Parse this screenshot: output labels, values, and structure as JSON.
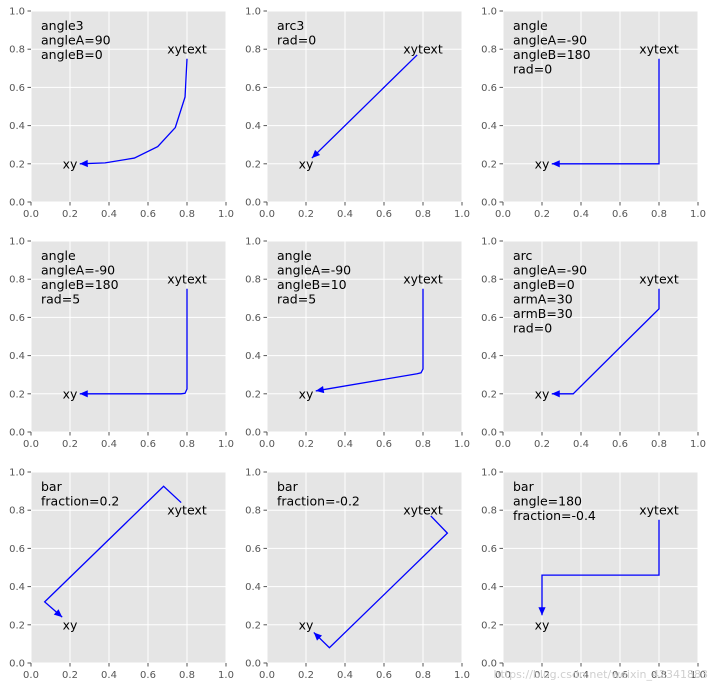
{
  "watermark": "https://blog.csdn.net/weixin_42341883",
  "colors": {
    "axes_background": "#e5e5e5",
    "grid": "#ffffff",
    "connector": "#0000ff",
    "tick_label": "#555555"
  },
  "chart_data": [
    {
      "type": "annotation",
      "panel_lines": [
        "angle3",
        "angleA=90",
        "angleB=0"
      ],
      "xy_label": "xy",
      "xytext_label": "xytext",
      "xy": [
        0.2,
        0.2
      ],
      "xytext": [
        0.8,
        0.8
      ],
      "xlim": [
        0,
        1
      ],
      "ylim": [
        0,
        1
      ],
      "grid": true,
      "xticks": [
        "0.0",
        "0.2",
        "0.4",
        "0.6",
        "0.8",
        "1.0"
      ],
      "yticks": [
        "0.0",
        "0.2",
        "0.4",
        "0.6",
        "0.8",
        "1.0"
      ],
      "path_points": [
        [
          0.8,
          0.75
        ],
        [
          0.79,
          0.55
        ],
        [
          0.74,
          0.39
        ],
        [
          0.65,
          0.29
        ],
        [
          0.53,
          0.23
        ],
        [
          0.38,
          0.205
        ],
        [
          0.25,
          0.2
        ]
      ],
      "path_kind": "curve"
    },
    {
      "type": "annotation",
      "panel_lines": [
        "arc3",
        "rad=0"
      ],
      "xy_label": "xy",
      "xytext_label": "xytext",
      "xy": [
        0.2,
        0.2
      ],
      "xytext": [
        0.8,
        0.8
      ],
      "xlim": [
        0,
        1
      ],
      "ylim": [
        0,
        1
      ],
      "grid": true,
      "xticks": [
        "0.0",
        "0.2",
        "0.4",
        "0.6",
        "0.8",
        "1.0"
      ],
      "yticks": [
        "0.0",
        "0.2",
        "0.4",
        "0.6",
        "0.8",
        "1.0"
      ],
      "path_points": [
        [
          0.77,
          0.77
        ],
        [
          0.23,
          0.23
        ]
      ],
      "path_kind": "line"
    },
    {
      "type": "annotation",
      "panel_lines": [
        "angle",
        "angleA=-90",
        "angleB=180",
        "rad=0"
      ],
      "xy_label": "xy",
      "xytext_label": "xytext",
      "xy": [
        0.2,
        0.2
      ],
      "xytext": [
        0.8,
        0.8
      ],
      "xlim": [
        0,
        1
      ],
      "ylim": [
        0,
        1
      ],
      "grid": true,
      "xticks": [
        "0.0",
        "0.2",
        "0.4",
        "0.6",
        "0.8",
        "1.0"
      ],
      "yticks": [
        "0.0",
        "0.2",
        "0.4",
        "0.6",
        "0.8",
        "1.0"
      ],
      "path_points": [
        [
          0.8,
          0.75
        ],
        [
          0.8,
          0.2
        ],
        [
          0.25,
          0.2
        ]
      ],
      "path_kind": "line"
    },
    {
      "type": "annotation",
      "panel_lines": [
        "angle",
        "angleA=-90",
        "angleB=180",
        "rad=5"
      ],
      "xy_label": "xy",
      "xytext_label": "xytext",
      "xy": [
        0.2,
        0.2
      ],
      "xytext": [
        0.8,
        0.8
      ],
      "xlim": [
        0,
        1
      ],
      "ylim": [
        0,
        1
      ],
      "grid": true,
      "xticks": [
        "0.0",
        "0.2",
        "0.4",
        "0.6",
        "0.8",
        "1.0"
      ],
      "yticks": [
        "0.0",
        "0.2",
        "0.4",
        "0.6",
        "0.8",
        "1.0"
      ],
      "path_points": [
        [
          0.8,
          0.75
        ],
        [
          0.8,
          0.225
        ],
        [
          0.79,
          0.203
        ],
        [
          0.77,
          0.2
        ],
        [
          0.25,
          0.2
        ]
      ],
      "path_kind": "line"
    },
    {
      "type": "annotation",
      "panel_lines": [
        "angle",
        "angleA=-90",
        "angleB=10",
        "rad=5"
      ],
      "xy_label": "xy",
      "xytext_label": "xytext",
      "xy": [
        0.2,
        0.2
      ],
      "xytext": [
        0.8,
        0.8
      ],
      "xlim": [
        0,
        1
      ],
      "ylim": [
        0,
        1
      ],
      "grid": true,
      "xticks": [
        "0.0",
        "0.2",
        "0.4",
        "0.6",
        "0.8",
        "1.0"
      ],
      "yticks": [
        "0.0",
        "0.2",
        "0.4",
        "0.6",
        "0.8",
        "1.0"
      ],
      "path_points": [
        [
          0.8,
          0.75
        ],
        [
          0.8,
          0.33
        ],
        [
          0.79,
          0.31
        ],
        [
          0.77,
          0.305
        ],
        [
          0.25,
          0.215
        ]
      ],
      "path_kind": "line"
    },
    {
      "type": "annotation",
      "panel_lines": [
        "arc",
        "angleA=-90",
        "angleB=0",
        "armA=30",
        "armB=30",
        "rad=0"
      ],
      "xy_label": "xy",
      "xytext_label": "xytext",
      "xy": [
        0.2,
        0.2
      ],
      "xytext": [
        0.8,
        0.8
      ],
      "xlim": [
        0,
        1
      ],
      "ylim": [
        0,
        1
      ],
      "grid": true,
      "xticks": [
        "0.0",
        "0.2",
        "0.4",
        "0.6",
        "0.8",
        "1.0"
      ],
      "yticks": [
        "0.0",
        "0.2",
        "0.4",
        "0.6",
        "0.8",
        "1.0"
      ],
      "path_points": [
        [
          0.8,
          0.75
        ],
        [
          0.8,
          0.645
        ],
        [
          0.36,
          0.2
        ],
        [
          0.25,
          0.2
        ]
      ],
      "path_kind": "line"
    },
    {
      "type": "annotation",
      "panel_lines": [
        "bar",
        "fraction=0.2"
      ],
      "xy_label": "xy",
      "xytext_label": "xytext",
      "xy": [
        0.2,
        0.2
      ],
      "xytext": [
        0.8,
        0.8
      ],
      "xlim": [
        0,
        1
      ],
      "ylim": [
        0,
        1
      ],
      "grid": true,
      "xticks": [
        "0.0",
        "0.2",
        "0.4",
        "0.6",
        "0.8",
        "1.0"
      ],
      "yticks": [
        "0.0",
        "0.2",
        "0.4",
        "0.6",
        "0.8",
        "1.0"
      ],
      "path_points": [
        [
          0.77,
          0.84
        ],
        [
          0.68,
          0.925
        ],
        [
          0.07,
          0.32
        ],
        [
          0.16,
          0.24
        ]
      ],
      "path_kind": "line"
    },
    {
      "type": "annotation",
      "panel_lines": [
        "bar",
        "fraction=-0.2"
      ],
      "xy_label": "xy",
      "xytext_label": "xytext",
      "xy": [
        0.2,
        0.2
      ],
      "xytext": [
        0.8,
        0.8
      ],
      "xlim": [
        0,
        1
      ],
      "ylim": [
        0,
        1
      ],
      "grid": true,
      "xticks": [
        "0.0",
        "0.2",
        "0.4",
        "0.6",
        "0.8",
        "1.0"
      ],
      "yticks": [
        "0.0",
        "0.2",
        "0.4",
        "0.6",
        "0.8",
        "1.0"
      ],
      "path_points": [
        [
          0.84,
          0.77
        ],
        [
          0.925,
          0.68
        ],
        [
          0.32,
          0.08
        ],
        [
          0.24,
          0.16
        ]
      ],
      "path_kind": "line"
    },
    {
      "type": "annotation",
      "panel_lines": [
        "bar",
        "angle=180",
        "fraction=-0.4"
      ],
      "xy_label": "xy",
      "xytext_label": "xytext",
      "xy": [
        0.2,
        0.2
      ],
      "xytext": [
        0.8,
        0.8
      ],
      "xlim": [
        0,
        1
      ],
      "ylim": [
        0,
        1
      ],
      "grid": true,
      "xticks": [
        "0.0",
        "0.2",
        "0.4",
        "0.6",
        "0.8",
        "1.0"
      ],
      "yticks": [
        "0.0",
        "0.2",
        "0.4",
        "0.6",
        "0.8",
        "1.0"
      ],
      "path_points": [
        [
          0.8,
          0.75
        ],
        [
          0.8,
          0.46
        ],
        [
          0.2,
          0.46
        ],
        [
          0.2,
          0.25
        ]
      ],
      "path_kind": "line"
    }
  ]
}
